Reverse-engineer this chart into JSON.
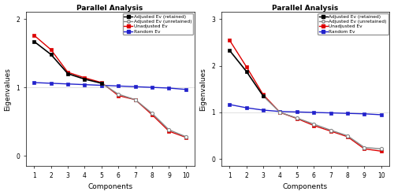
{
  "title": "Parallel Analysis",
  "xlabel": "Components",
  "ylabel": "Eigenvalues",
  "left": {
    "ylim": [
      -0.15,
      2.1
    ],
    "yticks": [
      0,
      1,
      2
    ],
    "components": [
      1,
      2,
      3,
      4,
      5,
      6,
      7,
      8,
      9,
      10
    ],
    "adj_retained": [
      1.67,
      1.48,
      1.2,
      1.12,
      1.06,
      0.9,
      0.82,
      0.62,
      0.38,
      0.28
    ],
    "unadjusted": [
      1.76,
      1.55,
      1.22,
      1.14,
      1.07,
      0.88,
      0.82,
      0.6,
      0.36,
      0.27
    ],
    "random": [
      1.07,
      1.06,
      1.05,
      1.04,
      1.03,
      1.02,
      1.01,
      1.0,
      0.99,
      0.97
    ],
    "retained_cutoff": 5
  },
  "right": {
    "ylim": [
      -0.15,
      3.15
    ],
    "yticks": [
      0,
      1,
      2,
      3
    ],
    "components": [
      1,
      2,
      3,
      4,
      5,
      6,
      7,
      8,
      9,
      10
    ],
    "adj_retained": [
      2.33,
      1.88,
      1.35,
      1.0,
      0.88,
      0.75,
      0.62,
      0.5,
      0.25,
      0.22
    ],
    "unadjusted": [
      2.55,
      1.98,
      1.38,
      1.0,
      0.87,
      0.72,
      0.6,
      0.48,
      0.22,
      0.17
    ],
    "random": [
      1.17,
      1.1,
      1.05,
      1.02,
      1.01,
      1.0,
      0.99,
      0.98,
      0.97,
      0.95
    ],
    "retained_cutoff": 3
  },
  "color_retained": "#000000",
  "color_unretained": "#888888",
  "color_unadjusted": "#dd0000",
  "color_random": "#2222cc",
  "bg_color": "#ffffff",
  "legend_labels": [
    "Adjusted Ev (retained)",
    "Adjusted Ev (unretained)",
    "Unadjusted Ev",
    "Random Ev"
  ]
}
